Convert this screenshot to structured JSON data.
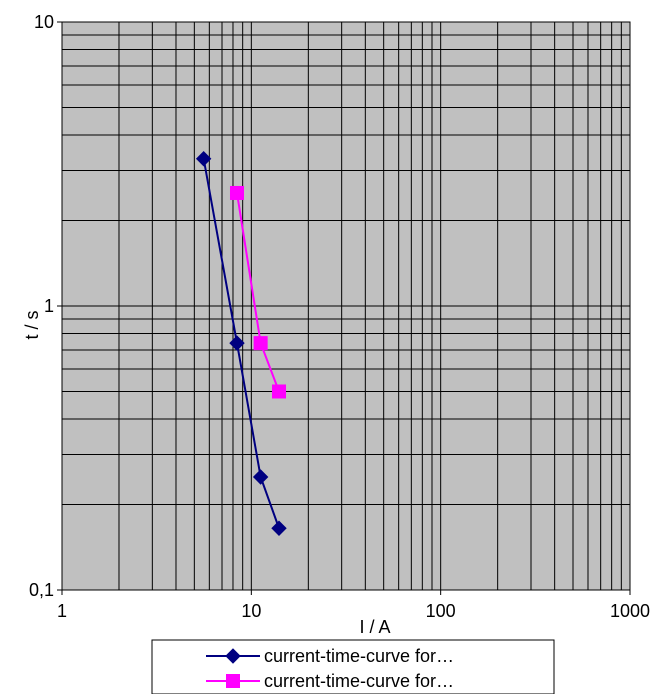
{
  "chart_data": {
    "type": "line",
    "xscale": "log",
    "yscale": "log",
    "xlim": [
      1,
      1000
    ],
    "ylim": [
      0.1,
      10
    ],
    "grid": true,
    "colors": {
      "plot_background": "#c0c0c0",
      "grid": "#000000"
    },
    "xlabel": "I / A",
    "ylabel": "t / s",
    "x_ticks": [
      {
        "value": 1,
        "label": "1"
      },
      {
        "value": 10,
        "label": "10"
      },
      {
        "value": 100,
        "label": "100"
      },
      {
        "value": 1000,
        "label": "1000"
      }
    ],
    "y_ticks": [
      {
        "value": 0.1,
        "label": "0,1"
      },
      {
        "value": 1,
        "label": "1"
      },
      {
        "value": 10,
        "label": "10"
      }
    ],
    "legend_position": "bottom",
    "series": [
      {
        "name": "current-time-curve for…",
        "color": "#000080",
        "marker": "diamond",
        "points": [
          {
            "x": 5.6,
            "y": 3.3
          },
          {
            "x": 8.4,
            "y": 0.74
          },
          {
            "x": 11.2,
            "y": 0.25
          },
          {
            "x": 14.0,
            "y": 0.165
          }
        ]
      },
      {
        "name": "current-time-curve for…",
        "color": "#ff00ff",
        "marker": "square",
        "points": [
          {
            "x": 8.4,
            "y": 2.5
          },
          {
            "x": 11.2,
            "y": 0.74
          },
          {
            "x": 14.0,
            "y": 0.5
          }
        ]
      }
    ]
  }
}
